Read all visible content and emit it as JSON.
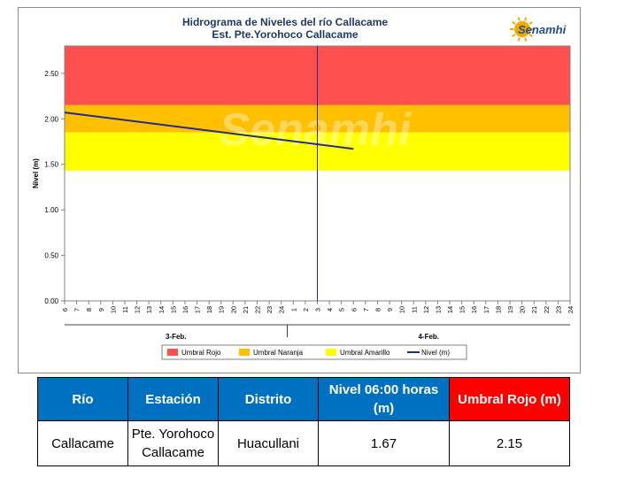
{
  "chart_data": {
    "type": "line",
    "title": "Hidrograma de Niveles del río Callacame",
    "subtitle": "Est. Pte.Yorohoco Callacame",
    "ylabel": "Nivel (m)",
    "xlabel": "",
    "ylim": [
      0,
      2.8
    ],
    "y_ticks": [
      "0.00",
      "0.50",
      "1.00",
      "1.50",
      "2.00",
      "2.50"
    ],
    "y_tick_values": [
      0,
      0.5,
      1.0,
      1.5,
      2.0,
      2.5
    ],
    "hour_ticks": [
      "6",
      "7",
      "8",
      "9",
      "10",
      "11",
      "12",
      "13",
      "14",
      "15",
      "16",
      "17",
      "18",
      "19",
      "20",
      "21",
      "22",
      "23",
      "24",
      "1",
      "2",
      "3",
      "4",
      "5",
      "6",
      "7",
      "8",
      "9",
      "10",
      "11",
      "12",
      "13",
      "14",
      "15",
      "16",
      "17",
      "18",
      "19",
      "20",
      "21",
      "22",
      "23",
      "24"
    ],
    "day_labels": [
      "3-Feb.",
      "4-Feb."
    ],
    "current_time_tick": "3",
    "grid": false,
    "legend_position": "bottom",
    "bands": [
      {
        "name": "Umbral Rojo",
        "from": 2.15,
        "to": 2.8,
        "color": "#ff5050"
      },
      {
        "name": "Umbral Naranja",
        "from": 1.85,
        "to": 2.15,
        "color": "#ffc000"
      },
      {
        "name": "Umbral Amarillo",
        "from": 1.43,
        "to": 1.85,
        "color": "#ffff00"
      }
    ],
    "series": [
      {
        "name": "Nivel (m)",
        "color": "#1f2d8f",
        "x_ticks": [
          0,
          24
        ],
        "values": [
          2.07,
          1.67
        ]
      }
    ],
    "legend": [
      "Umbral Rojo",
      "Umbral Naranja",
      "Umbral Amarillo",
      "Nivel (m)"
    ],
    "logo_text": "Senamhi"
  },
  "table": {
    "headers": [
      "Río",
      "Estación",
      "Distrito",
      "Nivel 06:00 horas (m)",
      "Umbral Rojo (m)"
    ],
    "row": [
      "Callacame",
      "Pte. Yorohoco Callacame",
      "Huacullani",
      "1.67",
      "2.15"
    ]
  },
  "colors": {
    "header_blue": "#0070c0",
    "header_red": "#ff0000",
    "line": "#1f2d8f"
  }
}
